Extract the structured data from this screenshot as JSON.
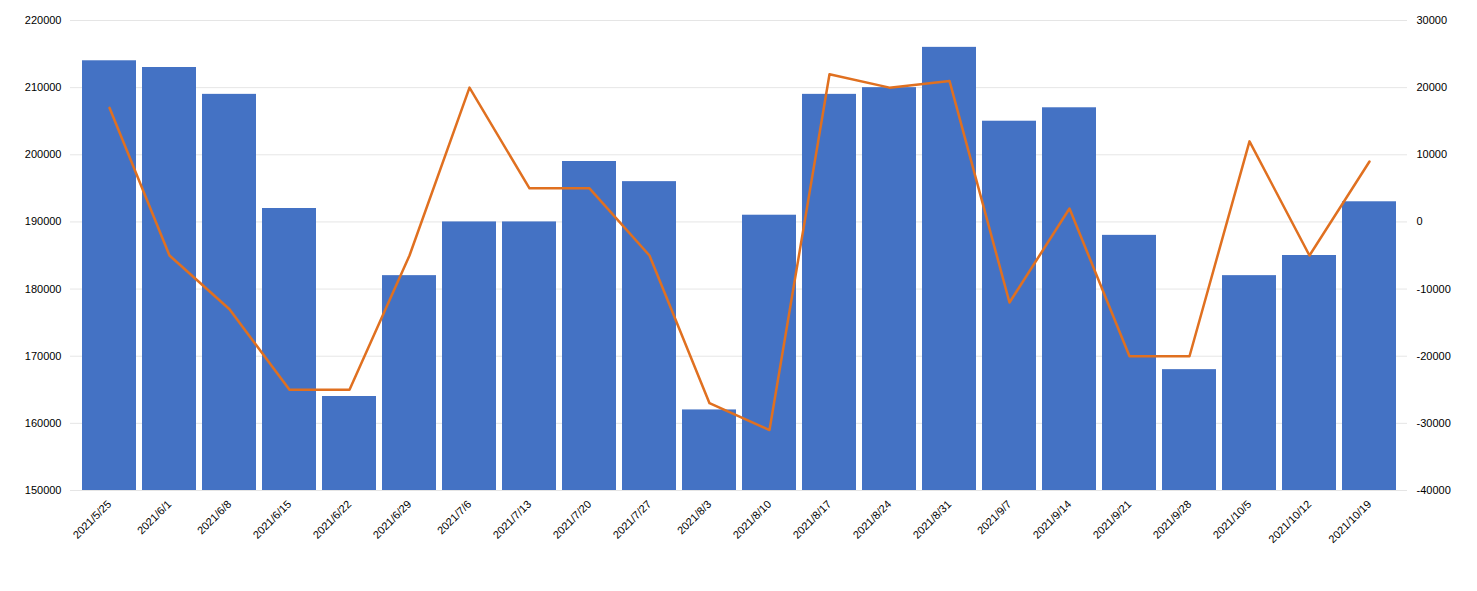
{
  "chart_data": {
    "type": "bar",
    "categories": [
      "2021/5/25",
      "2021/6/1",
      "2021/6/8",
      "2021/6/15",
      "2021/6/22",
      "2021/6/29",
      "2021/7/6",
      "2021/7/13",
      "2021/7/20",
      "2021/7/27",
      "2021/8/3",
      "2021/8/10",
      "2021/8/17",
      "2021/8/24",
      "2021/8/31",
      "2021/9/7",
      "2021/9/14",
      "2021/9/21",
      "2021/9/28",
      "2021/10/5",
      "2021/10/12",
      "2021/10/19"
    ],
    "series": [
      {
        "type": "bar",
        "color": "#4472C4",
        "values": [
          214000,
          213000,
          209000,
          192000,
          164000,
          182000,
          190000,
          190000,
          199000,
          196000,
          162000,
          191000,
          209000,
          210000,
          216000,
          205000,
          207000,
          188000,
          168000,
          182000,
          185000,
          193000
        ]
      },
      {
        "type": "line",
        "color": "#E07020",
        "axis": "y2",
        "values": [
          17000,
          -5000,
          -13000,
          -25000,
          -25000,
          -5000,
          20000,
          5000,
          5000,
          -5000,
          -27000,
          -31000,
          22000,
          20000,
          21000,
          -12000,
          2000,
          -20000,
          -20000,
          12000,
          -5000,
          9000
        ]
      }
    ],
    "ylim": [
      150000,
      220000
    ],
    "yticks": [
      150000,
      160000,
      170000,
      180000,
      190000,
      200000,
      210000,
      220000
    ],
    "y2lim": [
      -40000,
      30000
    ],
    "y2ticks": [
      -40000,
      -30000,
      -20000,
      -10000,
      0,
      10000,
      20000,
      30000
    ],
    "grid": true
  }
}
